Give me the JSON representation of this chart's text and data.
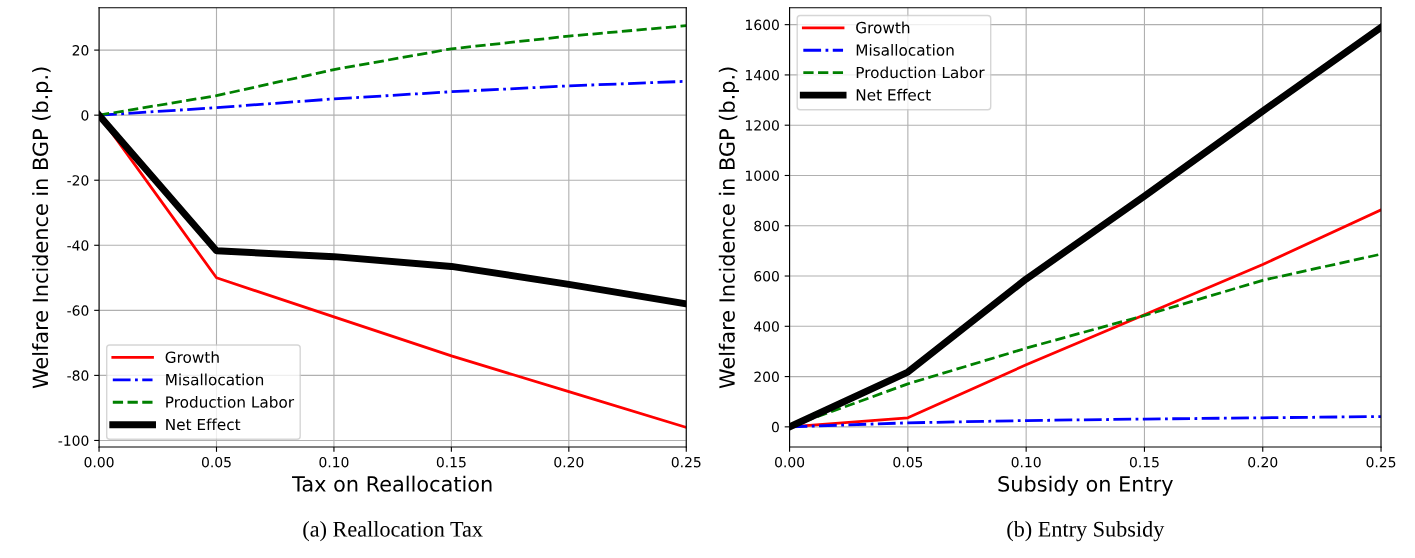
{
  "chart_data": [
    {
      "type": "line",
      "xlabel": "Tax on Reallocation",
      "ylabel": "Welfare Incidence in BGP (b.p.)",
      "x": [
        0,
        0.05,
        0.1,
        0.15,
        0.2,
        0.25
      ],
      "series": [
        {
          "name": "Growth",
          "color": "#ff0000",
          "line_style": "solid",
          "values": [
            0,
            -50,
            -62,
            -74,
            -85,
            -96
          ]
        },
        {
          "name": "Misallocation",
          "color": "#0000ff",
          "line_style": "dashdot",
          "values": [
            0,
            2.3,
            5,
            7.2,
            9,
            10.4
          ]
        },
        {
          "name": "Production Labor",
          "color": "#008000",
          "line_style": "dashed",
          "values": [
            0,
            6,
            14,
            20.4,
            24.3,
            27.5
          ]
        },
        {
          "name": "Net Effect",
          "color": "#000000",
          "line_style": "solid",
          "values": [
            0,
            -41.7,
            -43.5,
            -46.5,
            -52,
            -58
          ]
        }
      ],
      "xlim": [
        0,
        0.25
      ],
      "xticks": [
        {
          "value": 0,
          "label": "0.00"
        },
        {
          "value": 0.05,
          "label": "0.05"
        },
        {
          "value": 0.1,
          "label": "0.10"
        },
        {
          "value": 0.15,
          "label": "0.15"
        },
        {
          "value": 0.2,
          "label": "0.20"
        },
        {
          "value": 0.25,
          "label": "0.25"
        }
      ],
      "ylim": [
        -102,
        33
      ],
      "yticks": [
        -100,
        -80,
        -60,
        -40,
        -20,
        0,
        20
      ],
      "grid": true,
      "legend": "bottom left",
      "marker": "none",
      "annotations": [
        "(a) Reallocation Tax"
      ]
    },
    {
      "type": "line",
      "xlabel": "Subsidy on Entry",
      "ylabel": "Welfare Incidence in BGP (b.p.)",
      "x": [
        0,
        0.05,
        0.1,
        0.15,
        0.2,
        0.25
      ],
      "series": [
        {
          "name": "Growth",
          "color": "#ff0000",
          "line_style": "solid",
          "values": [
            0,
            36,
            247,
            446,
            646,
            863
          ]
        },
        {
          "name": "Misallocation",
          "color": "#0000ff",
          "line_style": "dashdot",
          "values": [
            0,
            16,
            25,
            31,
            36,
            41
          ]
        },
        {
          "name": "Production Labor",
          "color": "#008000",
          "line_style": "dashed",
          "values": [
            0,
            171,
            313,
            443,
            583,
            687
          ]
        },
        {
          "name": "Net Effect",
          "color": "#000000",
          "line_style": "solid",
          "values": [
            0,
            218,
            588,
            918,
            1256,
            1589
          ]
        }
      ],
      "xlim": [
        0,
        0.25
      ],
      "xticks": [
        {
          "value": 0,
          "label": "0.00"
        },
        {
          "value": 0.05,
          "label": "0.05"
        },
        {
          "value": 0.1,
          "label": "0.10"
        },
        {
          "value": 0.15,
          "label": "0.15"
        },
        {
          "value": 0.2,
          "label": "0.20"
        },
        {
          "value": 0.25,
          "label": "0.25"
        }
      ],
      "ylim": [
        -80,
        1667
      ],
      "yticks": [
        0,
        200,
        400,
        600,
        800,
        1000,
        1200,
        1400,
        1600
      ],
      "grid": true,
      "legend": "top left",
      "marker": "none",
      "annotations": [
        "(b) Entry Subsidy"
      ]
    }
  ]
}
